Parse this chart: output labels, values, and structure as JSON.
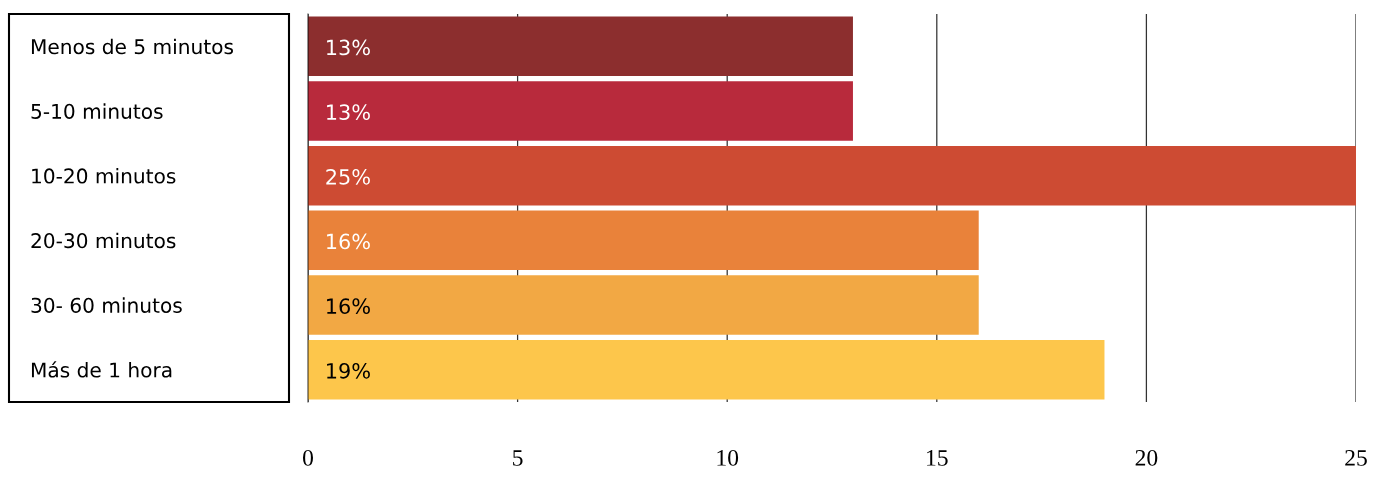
{
  "chart_data": {
    "type": "bar",
    "orientation": "horizontal",
    "categories": [
      "Menos de 5 minutos",
      "5-10 minutos",
      "10-20 minutos",
      "20-30 minutos",
      "30- 60 minutos",
      "Más de 1 hora"
    ],
    "values": [
      13,
      13,
      25,
      16,
      16,
      19
    ],
    "colors": [
      "#8c2e2e",
      "#b82a3c",
      "#cd4b33",
      "#e9823a",
      "#f2a844",
      "#fdc64b"
    ],
    "value_labels": [
      "13%",
      "13%",
      "25%",
      "16%",
      "16%",
      "19%"
    ],
    "xlim": [
      0,
      25
    ],
    "xticks": [
      0,
      5,
      10,
      15,
      20,
      25
    ],
    "grid": "x",
    "legend": false
  }
}
